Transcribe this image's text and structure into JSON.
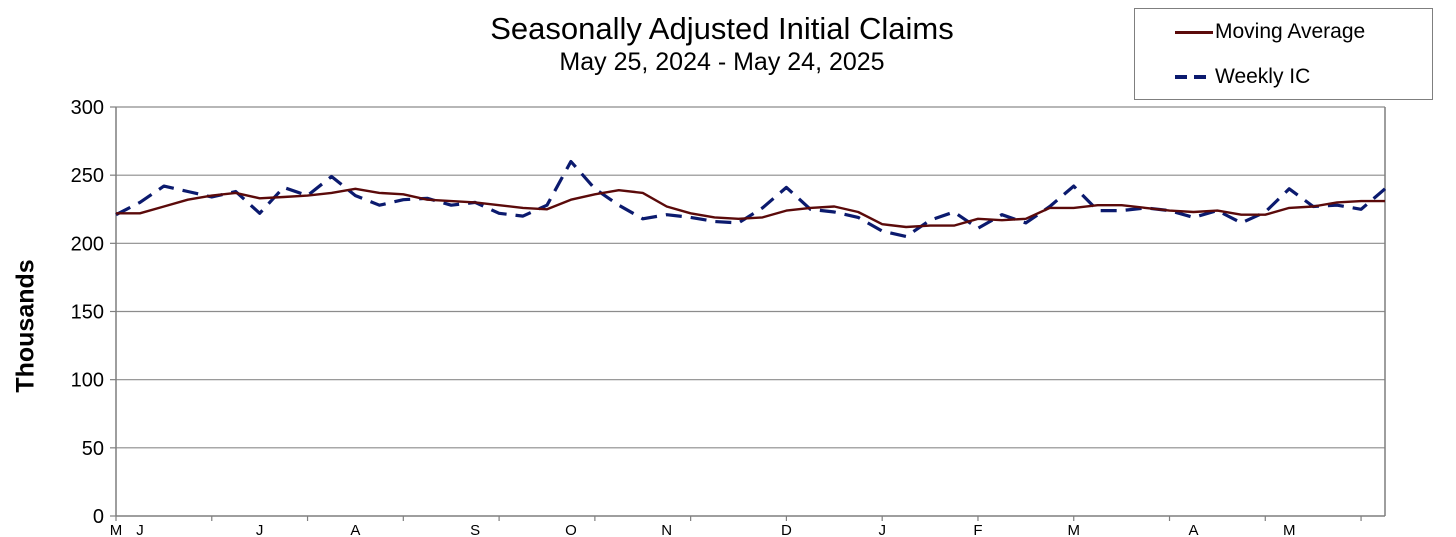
{
  "chart_data": {
    "type": "line",
    "title": "Seasonally Adjusted Initial Claims",
    "subtitle": "May 25, 2024 - May 24, 2025",
    "ylabel": "Thousands",
    "xlabel": "",
    "ylim": [
      0,
      300
    ],
    "yticks": [
      0,
      50,
      100,
      150,
      200,
      250,
      300
    ],
    "grid": true,
    "legend_position": "top-right",
    "x_month_labels": [
      {
        "label": "M",
        "week_index": 0
      },
      {
        "label": "J",
        "week_index": 1
      },
      {
        "label": "J",
        "week_index": 6
      },
      {
        "label": "A",
        "week_index": 10
      },
      {
        "label": "S",
        "week_index": 15
      },
      {
        "label": "O",
        "week_index": 19
      },
      {
        "label": "N",
        "week_index": 23
      },
      {
        "label": "D",
        "week_index": 28
      },
      {
        "label": "J",
        "week_index": 32
      },
      {
        "label": "F",
        "week_index": 36
      },
      {
        "label": "M",
        "week_index": 40
      },
      {
        "label": "A",
        "week_index": 45
      },
      {
        "label": "M",
        "week_index": 49
      }
    ],
    "series": [
      {
        "name": "Moving Average",
        "color": "#5b0a0a",
        "style": "solid",
        "values": [
          222,
          222,
          227,
          232,
          235,
          237,
          233,
          234,
          235,
          237,
          240,
          237,
          236,
          232,
          231,
          230,
          228,
          226,
          225,
          232,
          236,
          239,
          237,
          227,
          222,
          219,
          218,
          219,
          224,
          226,
          227,
          223,
          214,
          212,
          213,
          213,
          218,
          217,
          218,
          226,
          226,
          228,
          228,
          226,
          224,
          223,
          224,
          221,
          221,
          226,
          227,
          230,
          231,
          231
        ]
      },
      {
        "name": "Weekly IC",
        "color": "#0b1a6e",
        "style": "dashed",
        "values": [
          221,
          230,
          242,
          238,
          234,
          238,
          222,
          241,
          235,
          249,
          235,
          228,
          232,
          233,
          228,
          230,
          222,
          220,
          228,
          260,
          240,
          228,
          218,
          221,
          219,
          216,
          215,
          226,
          241,
          225,
          223,
          219,
          209,
          205,
          217,
          223,
          211,
          221,
          215,
          227,
          242,
          224,
          224,
          226,
          224,
          219,
          224,
          215,
          223,
          240,
          227,
          228,
          225,
          240
        ]
      }
    ]
  }
}
